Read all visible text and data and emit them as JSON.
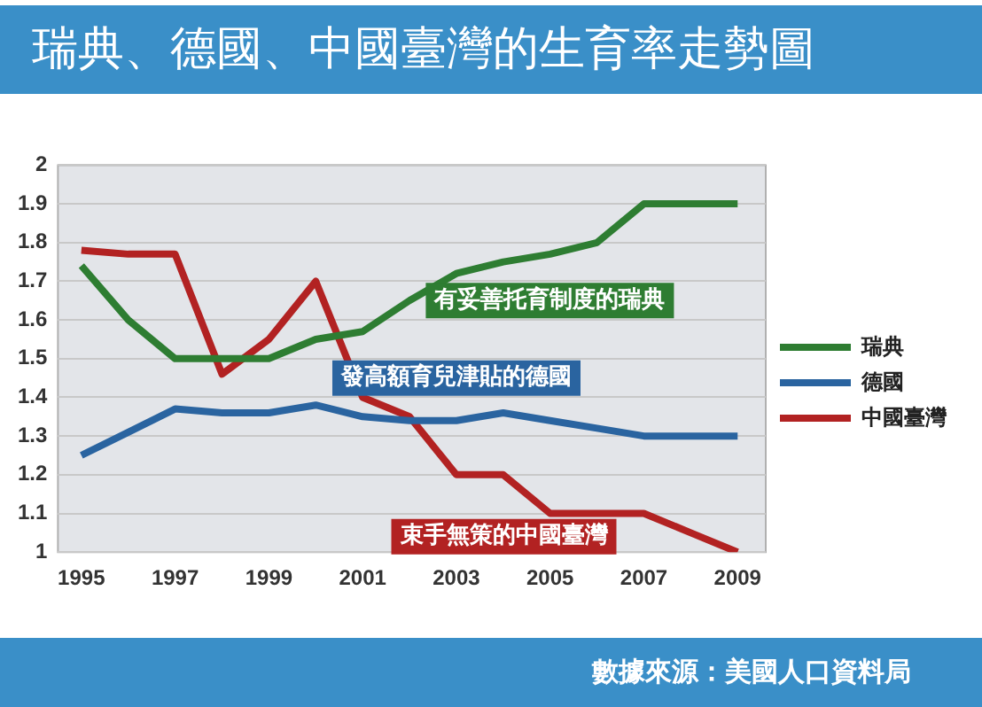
{
  "chart_data": {
    "type": "line",
    "title": "瑞典、德國、中國臺灣的生育率走勢圖",
    "x": [
      1995,
      1996,
      1997,
      1998,
      1999,
      2000,
      2001,
      2002,
      2003,
      2004,
      2005,
      2006,
      2007,
      2008,
      2009
    ],
    "xlim": [
      1994.5,
      2009.6
    ],
    "xticks": [
      1995,
      1997,
      1999,
      2001,
      2003,
      2005,
      2007,
      2009
    ],
    "ylim": [
      1,
      2
    ],
    "yticks": [
      1,
      {
        "value": 1.1,
        "label": "1.1"
      },
      {
        "value": 1.2,
        "label": "1.2"
      },
      {
        "value": 1.3,
        "label": "1.3"
      },
      {
        "value": 1.4,
        "label": "1.4"
      },
      {
        "value": 1.5,
        "label": "1.5"
      },
      {
        "value": 1.6,
        "label": "1.6"
      },
      {
        "value": 1.7,
        "label": "1.7"
      },
      {
        "value": 1.8,
        "label": "1.8"
      },
      {
        "value": 1.9,
        "label": "1.9"
      },
      2
    ],
    "series": [
      {
        "name": "瑞典",
        "color": "#2e7d32",
        "values": [
          1.74,
          1.6,
          1.5,
          1.5,
          1.5,
          1.55,
          1.57,
          1.65,
          1.72,
          1.75,
          1.77,
          1.8,
          1.9,
          1.9,
          1.9
        ]
      },
      {
        "name": "德國",
        "color": "#2a64a0",
        "values": [
          1.25,
          1.31,
          1.37,
          1.36,
          1.36,
          1.38,
          1.35,
          1.34,
          1.34,
          1.36,
          1.34,
          1.32,
          1.3,
          1.3,
          1.3
        ]
      },
      {
        "name": "中國臺灣",
        "color": "#b22222",
        "values": [
          1.78,
          1.77,
          1.77,
          1.46,
          1.55,
          1.7,
          1.4,
          1.35,
          1.2,
          1.2,
          1.1,
          1.1,
          1.1,
          1.05,
          1
        ]
      }
    ],
    "annotations": [
      "有妥善托育制度的瑞典",
      "發高額育兒津貼的德國",
      "束手無策的中國臺灣",
      "數據來源：美國人口資料局"
    ],
    "grid": "y",
    "legend": "right",
    "marker": "none",
    "line_style": "solid"
  }
}
